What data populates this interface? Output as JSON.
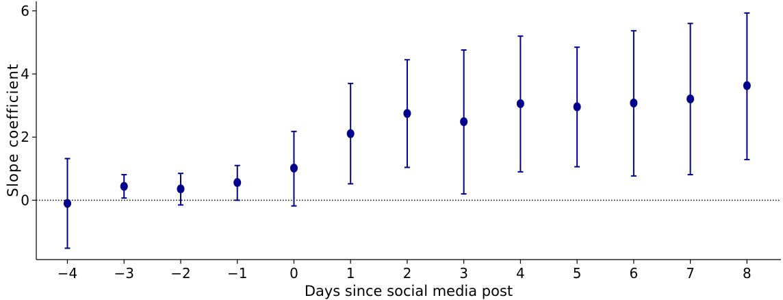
{
  "chart_data": {
    "type": "scatter",
    "title": "",
    "xlabel": "Days since social media post",
    "ylabel": "Slope coefficient",
    "x": [
      -4,
      -3,
      -2,
      -1,
      0,
      1,
      2,
      3,
      4,
      5,
      6,
      7,
      8
    ],
    "series": [
      {
        "y": [
          -0.1,
          0.44,
          0.36,
          0.56,
          1.02,
          2.11,
          2.75,
          2.49,
          3.06,
          2.96,
          3.08,
          3.21,
          3.63
        ],
        "err_low": [
          -1.52,
          0.07,
          -0.15,
          0.0,
          -0.18,
          0.52,
          1.04,
          0.2,
          0.9,
          1.06,
          0.77,
          0.81,
          1.29
        ],
        "err_high": [
          1.32,
          0.81,
          0.85,
          1.1,
          2.18,
          3.7,
          4.45,
          4.76,
          5.2,
          4.85,
          5.37,
          5.6,
          5.93
        ],
        "color": "#00008B"
      }
    ],
    "xlim": [
      -4.55,
      8.6
    ],
    "ylim": [
      -1.88,
      6.3
    ],
    "xticks": [
      -4,
      -3,
      -2,
      -1,
      0,
      1,
      2,
      3,
      4,
      5,
      6,
      7,
      8
    ],
    "xtick_labels": [
      "−4",
      "−3",
      "−2",
      "−1",
      "0",
      "1",
      "2",
      "3",
      "4",
      "5",
      "6",
      "7",
      "8"
    ],
    "yticks": [
      0,
      2,
      4,
      6
    ],
    "ytick_labels": [
      "0",
      "2",
      "4",
      "6"
    ],
    "reference_line": {
      "y": 0,
      "style": "dotted"
    },
    "grid": false,
    "legend": "none"
  }
}
